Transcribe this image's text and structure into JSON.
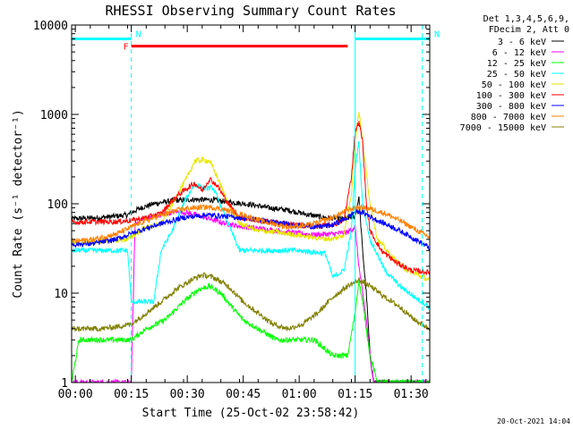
{
  "chart_data": {
    "type": "line",
    "title": "RHESSI Observing Summary Count Rates",
    "xlabel": "Start Time (25-Oct-02 23:58:42)",
    "ylabel": "Count Rate (s⁻¹ detector⁻¹)",
    "x_unit": "minutes",
    "xlim": [
      0,
      96
    ],
    "ylim": [
      1,
      10000
    ],
    "y_scale": "log",
    "x_ticks": [
      {
        "t": 1,
        "label": "00:00"
      },
      {
        "t": 16,
        "label": "00:15"
      },
      {
        "t": 31,
        "label": "00:30"
      },
      {
        "t": 46,
        "label": "00:45"
      },
      {
        "t": 61,
        "label": "01:00"
      },
      {
        "t": 76,
        "label": "01:15"
      },
      {
        "t": 91,
        "label": "01:30"
      }
    ],
    "y_ticks": [
      {
        "v": 1,
        "label": "1"
      },
      {
        "v": 10,
        "label": "10"
      },
      {
        "v": 100,
        "label": "100"
      },
      {
        "v": 1000,
        "label": "1000"
      },
      {
        "v": 10000,
        "label": "10000"
      }
    ],
    "legend_header": [
      "Det 1,3,4,5,6,9,",
      "FDecim 2, Att 0"
    ],
    "legend_position": "right",
    "series": [
      {
        "name": "3 - 6 keV",
        "color": "#000000",
        "points": [
          [
            0,
            68
          ],
          [
            8,
            70
          ],
          [
            15,
            75
          ],
          [
            18,
            88
          ],
          [
            22,
            100
          ],
          [
            27,
            108
          ],
          [
            33,
            112
          ],
          [
            38,
            110
          ],
          [
            43,
            104
          ],
          [
            48,
            98
          ],
          [
            53,
            90
          ],
          [
            58,
            85
          ],
          [
            63,
            76
          ],
          [
            68,
            70
          ],
          [
            73,
            68
          ],
          [
            76,
            72
          ],
          [
            77,
            120
          ],
          [
            78,
            30
          ],
          [
            79,
            10
          ],
          [
            80,
            2
          ],
          [
            81,
            1
          ]
        ]
      },
      {
        "name": "6 - 12 keV",
        "color": "#ff00ff",
        "points": [
          [
            0,
            1
          ],
          [
            16,
            1
          ],
          [
            17,
            60
          ],
          [
            20,
            70
          ],
          [
            24,
            75
          ],
          [
            28,
            82
          ],
          [
            32,
            78
          ],
          [
            36,
            70
          ],
          [
            40,
            62
          ],
          [
            45,
            56
          ],
          [
            50,
            53
          ],
          [
            55,
            50
          ],
          [
            60,
            47
          ],
          [
            65,
            45
          ],
          [
            70,
            46
          ],
          [
            74,
            48
          ],
          [
            76,
            55
          ],
          [
            77,
            20
          ],
          [
            78,
            10
          ],
          [
            79,
            5
          ],
          [
            80,
            2
          ],
          [
            81,
            1
          ]
        ]
      },
      {
        "name": "12 - 25 keV",
        "color": "#00ff00",
        "points": [
          [
            0,
            1
          ],
          [
            2,
            3
          ],
          [
            8,
            3
          ],
          [
            12,
            3
          ],
          [
            16,
            3
          ],
          [
            20,
            4
          ],
          [
            25,
            5
          ],
          [
            30,
            8
          ],
          [
            34,
            11
          ],
          [
            37,
            12
          ],
          [
            40,
            10
          ],
          [
            43,
            7
          ],
          [
            46,
            5
          ],
          [
            50,
            4
          ],
          [
            55,
            3
          ],
          [
            60,
            3
          ],
          [
            65,
            3
          ],
          [
            70,
            2
          ],
          [
            74,
            2
          ],
          [
            76,
            6
          ],
          [
            77,
            14
          ],
          [
            78,
            8
          ],
          [
            79,
            4
          ],
          [
            80,
            2
          ],
          [
            82,
            1
          ],
          [
            96,
            1
          ]
        ]
      },
      {
        "name": "25 - 50 keV",
        "color": "#00ffff",
        "points": [
          [
            0,
            30
          ],
          [
            10,
            30
          ],
          [
            15,
            30
          ],
          [
            16,
            8
          ],
          [
            22,
            8
          ],
          [
            24,
            30
          ],
          [
            27,
            50
          ],
          [
            30,
            100
          ],
          [
            33,
            170
          ],
          [
            35,
            150
          ],
          [
            38,
            150
          ],
          [
            42,
            60
          ],
          [
            45,
            30
          ],
          [
            47,
            30
          ],
          [
            50,
            30
          ],
          [
            60,
            30
          ],
          [
            68,
            28
          ],
          [
            70,
            15
          ],
          [
            73,
            18
          ],
          [
            75,
            50
          ],
          [
            76,
            250
          ],
          [
            77,
            500
          ],
          [
            78,
            100
          ],
          [
            80,
            40
          ],
          [
            84,
            18
          ],
          [
            88,
            12
          ],
          [
            92,
            9
          ],
          [
            96,
            7
          ]
        ]
      },
      {
        "name": "50 - 100 keV",
        "color": "#e6e600",
        "points": [
          [
            0,
            37
          ],
          [
            8,
            38
          ],
          [
            15,
            40
          ],
          [
            20,
            55
          ],
          [
            24,
            60
          ],
          [
            28,
            120
          ],
          [
            31,
            200
          ],
          [
            33,
            300
          ],
          [
            35,
            310
          ],
          [
            37,
            300
          ],
          [
            39,
            200
          ],
          [
            42,
            100
          ],
          [
            45,
            60
          ],
          [
            50,
            50
          ],
          [
            55,
            48
          ],
          [
            60,
            45
          ],
          [
            65,
            42
          ],
          [
            70,
            40
          ],
          [
            73,
            45
          ],
          [
            75,
            130
          ],
          [
            76,
            500
          ],
          [
            77,
            1100
          ],
          [
            78,
            500
          ],
          [
            80,
            100
          ],
          [
            82,
            40
          ],
          [
            86,
            25
          ],
          [
            90,
            18
          ],
          [
            96,
            14
          ]
        ]
      },
      {
        "name": "100 - 300 keV",
        "color": "#ff0000",
        "points": [
          [
            0,
            62
          ],
          [
            6,
            63
          ],
          [
            12,
            63
          ],
          [
            16,
            65
          ],
          [
            20,
            70
          ],
          [
            24,
            78
          ],
          [
            28,
            120
          ],
          [
            31,
            150
          ],
          [
            33,
            170
          ],
          [
            35,
            140
          ],
          [
            37,
            190
          ],
          [
            39,
            160
          ],
          [
            42,
            100
          ],
          [
            45,
            70
          ],
          [
            50,
            65
          ],
          [
            55,
            62
          ],
          [
            60,
            58
          ],
          [
            65,
            56
          ],
          [
            70,
            58
          ],
          [
            73,
            65
          ],
          [
            75,
            200
          ],
          [
            76,
            650
          ],
          [
            77,
            820
          ],
          [
            78,
            500
          ],
          [
            79,
            100
          ],
          [
            80,
            50
          ],
          [
            83,
            30
          ],
          [
            87,
            22
          ],
          [
            91,
            18
          ],
          [
            96,
            17
          ]
        ]
      },
      {
        "name": "300 - 800 keV",
        "color": "#0000ff",
        "points": [
          [
            0,
            35
          ],
          [
            6,
            36
          ],
          [
            12,
            40
          ],
          [
            18,
            50
          ],
          [
            24,
            60
          ],
          [
            30,
            70
          ],
          [
            36,
            75
          ],
          [
            42,
            72
          ],
          [
            48,
            68
          ],
          [
            54,
            62
          ],
          [
            60,
            58
          ],
          [
            66,
            55
          ],
          [
            70,
            58
          ],
          [
            74,
            70
          ],
          [
            76,
            82
          ],
          [
            78,
            80
          ],
          [
            82,
            65
          ],
          [
            86,
            55
          ],
          [
            90,
            45
          ],
          [
            94,
            36
          ],
          [
            96,
            32
          ]
        ]
      },
      {
        "name": "800 - 7000 keV",
        "color": "#ff8000",
        "points": [
          [
            0,
            38
          ],
          [
            6,
            40
          ],
          [
            12,
            46
          ],
          [
            18,
            60
          ],
          [
            24,
            75
          ],
          [
            30,
            88
          ],
          [
            36,
            92
          ],
          [
            40,
            88
          ],
          [
            46,
            75
          ],
          [
            52,
            62
          ],
          [
            58,
            55
          ],
          [
            64,
            58
          ],
          [
            70,
            70
          ],
          [
            74,
            85
          ],
          [
            77,
            92
          ],
          [
            80,
            88
          ],
          [
            84,
            78
          ],
          [
            88,
            65
          ],
          [
            92,
            52
          ],
          [
            96,
            42
          ]
        ]
      },
      {
        "name": "7000 - 15000 keV",
        "color": "#808000",
        "points": [
          [
            0,
            4
          ],
          [
            4,
            4
          ],
          [
            8,
            4
          ],
          [
            12,
            4.2
          ],
          [
            16,
            4.5
          ],
          [
            20,
            6
          ],
          [
            24,
            8
          ],
          [
            28,
            11
          ],
          [
            32,
            14
          ],
          [
            35,
            16
          ],
          [
            38,
            15
          ],
          [
            42,
            12
          ],
          [
            46,
            8
          ],
          [
            50,
            6
          ],
          [
            54,
            4.5
          ],
          [
            58,
            4
          ],
          [
            62,
            4.5
          ],
          [
            66,
            6
          ],
          [
            70,
            9
          ],
          [
            74,
            12
          ],
          [
            77,
            14
          ],
          [
            80,
            12
          ],
          [
            84,
            9
          ],
          [
            88,
            7
          ],
          [
            92,
            5
          ],
          [
            96,
            4
          ]
        ]
      }
    ],
    "annotations": [
      {
        "label": "N",
        "color": "#00ffff",
        "t0": 0,
        "t1": 16,
        "level": 7000
      },
      {
        "label": "N",
        "color": "#00ffff",
        "t0": 76,
        "t1": 96,
        "level": 7000
      },
      {
        "label": "F",
        "color": "#ff0000",
        "t0": 16,
        "t1": 74,
        "level": 5800
      }
    ],
    "vlines_solid": [
      0,
      76
    ],
    "vlines_dashed": [
      16,
      94
    ],
    "footer": "20-Oct-2021 14:04"
  }
}
